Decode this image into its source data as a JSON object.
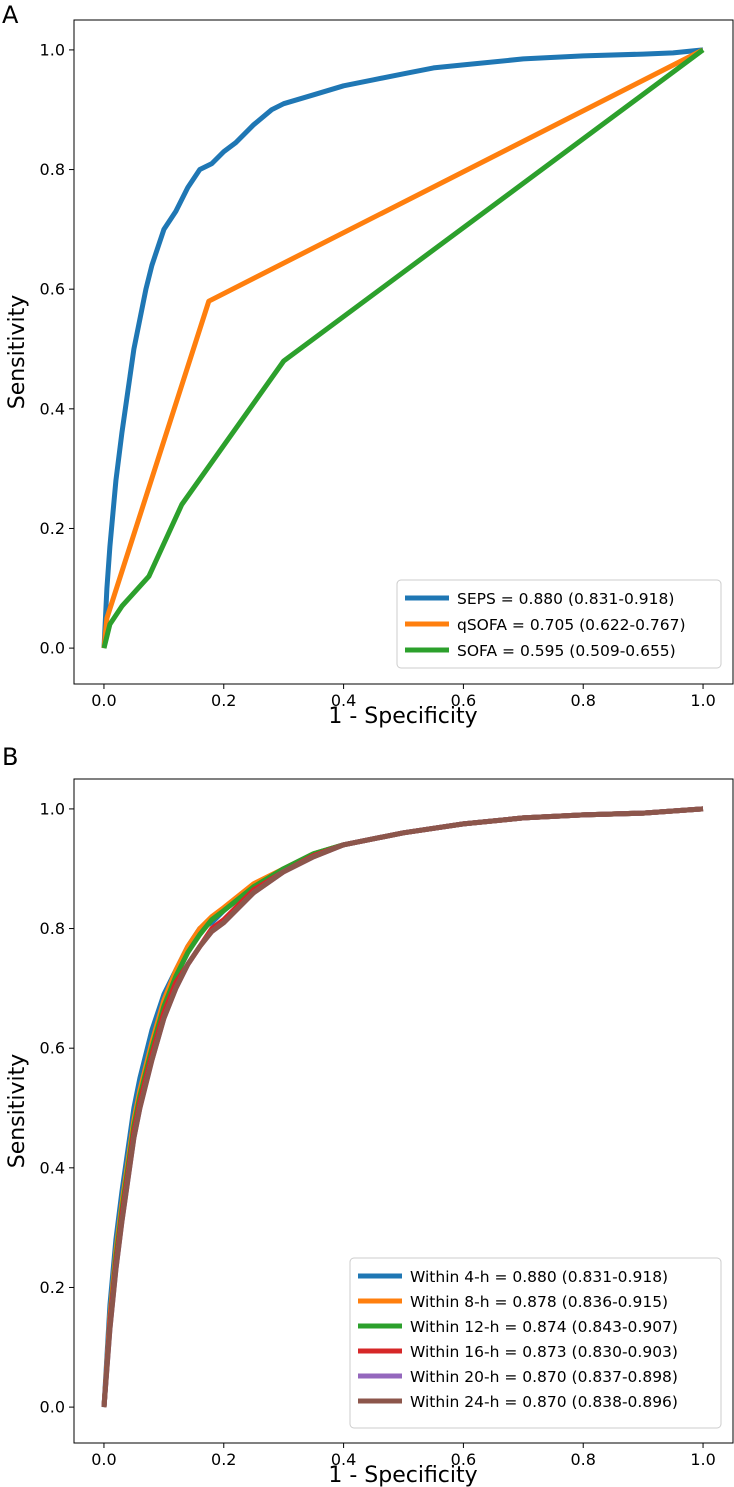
{
  "chart_data": [
    {
      "panel": "A",
      "type": "line",
      "xlabel": "1 - Specificity",
      "ylabel": "Sensitivity",
      "xlim": [
        -0.05,
        1.05
      ],
      "ylim": [
        -0.06,
        1.05
      ],
      "xticks": [
        "0.0",
        "0.2",
        "0.4",
        "0.6",
        "0.8",
        "1.0"
      ],
      "yticks": [
        "0.0",
        "0.2",
        "0.4",
        "0.6",
        "0.8",
        "1.0"
      ],
      "legend_position": "lower-right",
      "series": [
        {
          "name": "SEPS = 0.880 (0.831-0.918)",
          "color": "#1f77b4",
          "x": [
            0,
            0.005,
            0.01,
            0.02,
            0.03,
            0.04,
            0.05,
            0.06,
            0.07,
            0.08,
            0.09,
            0.1,
            0.12,
            0.14,
            0.16,
            0.18,
            0.2,
            0.22,
            0.25,
            0.28,
            0.3,
            0.35,
            0.4,
            0.45,
            0.5,
            0.55,
            0.6,
            0.7,
            0.8,
            0.9,
            0.95,
            1.0
          ],
          "y": [
            0,
            0.1,
            0.17,
            0.28,
            0.36,
            0.43,
            0.5,
            0.55,
            0.6,
            0.64,
            0.67,
            0.7,
            0.73,
            0.77,
            0.8,
            0.81,
            0.83,
            0.845,
            0.875,
            0.9,
            0.91,
            0.925,
            0.94,
            0.95,
            0.96,
            0.97,
            0.975,
            0.985,
            0.99,
            0.993,
            0.995,
            1.0
          ]
        },
        {
          "name": "qSOFA = 0.705 (0.622-0.767)",
          "color": "#ff7f0e",
          "x": [
            0,
            0.005,
            0.175,
            1.0
          ],
          "y": [
            0,
            0.05,
            0.58,
            1.0
          ]
        },
        {
          "name": "SOFA = 0.595 (0.509-0.655)",
          "color": "#2ca02c",
          "x": [
            0,
            0.01,
            0.03,
            0.075,
            0.13,
            0.3,
            1.0
          ],
          "y": [
            0,
            0.04,
            0.07,
            0.12,
            0.24,
            0.48,
            1.0
          ]
        }
      ]
    },
    {
      "panel": "B",
      "type": "line",
      "xlabel": "1 - Specificity",
      "ylabel": "Sensitivity",
      "xlim": [
        -0.05,
        1.05
      ],
      "ylim": [
        -0.06,
        1.05
      ],
      "xticks": [
        "0.0",
        "0.2",
        "0.4",
        "0.6",
        "0.8",
        "1.0"
      ],
      "yticks": [
        "0.0",
        "0.2",
        "0.4",
        "0.6",
        "0.8",
        "1.0"
      ],
      "legend_position": "lower-right",
      "series": [
        {
          "name": "Within 4-h = 0.880 (0.831-0.918)",
          "color": "#1f77b4",
          "x": [
            0,
            0.01,
            0.02,
            0.03,
            0.04,
            0.05,
            0.06,
            0.08,
            0.1,
            0.12,
            0.14,
            0.16,
            0.18,
            0.2,
            0.25,
            0.3,
            0.35,
            0.4,
            0.5,
            0.6,
            0.7,
            0.8,
            0.9,
            1.0
          ],
          "y": [
            0,
            0.17,
            0.28,
            0.36,
            0.43,
            0.5,
            0.55,
            0.63,
            0.69,
            0.73,
            0.77,
            0.8,
            0.81,
            0.83,
            0.87,
            0.9,
            0.925,
            0.94,
            0.96,
            0.975,
            0.985,
            0.99,
            0.993,
            1.0
          ]
        },
        {
          "name": "Within 8-h = 0.878 (0.836-0.915)",
          "color": "#ff7f0e",
          "x": [
            0,
            0.01,
            0.02,
            0.03,
            0.04,
            0.05,
            0.06,
            0.08,
            0.1,
            0.12,
            0.14,
            0.16,
            0.18,
            0.2,
            0.25,
            0.3,
            0.35,
            0.4,
            0.5,
            0.6,
            0.7,
            0.8,
            0.9,
            1.0
          ],
          "y": [
            0,
            0.15,
            0.26,
            0.34,
            0.41,
            0.48,
            0.53,
            0.61,
            0.68,
            0.73,
            0.77,
            0.8,
            0.82,
            0.835,
            0.875,
            0.9,
            0.925,
            0.94,
            0.96,
            0.975,
            0.985,
            0.99,
            0.993,
            1.0
          ]
        },
        {
          "name": "Within 12-h = 0.874 (0.843-0.907)",
          "color": "#2ca02c",
          "x": [
            0,
            0.01,
            0.02,
            0.03,
            0.04,
            0.05,
            0.06,
            0.08,
            0.1,
            0.12,
            0.14,
            0.16,
            0.18,
            0.2,
            0.25,
            0.3,
            0.35,
            0.4,
            0.5,
            0.6,
            0.7,
            0.8,
            0.9,
            1.0
          ],
          "y": [
            0,
            0.14,
            0.25,
            0.33,
            0.4,
            0.47,
            0.52,
            0.6,
            0.67,
            0.72,
            0.76,
            0.79,
            0.815,
            0.83,
            0.87,
            0.9,
            0.925,
            0.94,
            0.96,
            0.975,
            0.985,
            0.99,
            0.993,
            1.0
          ]
        },
        {
          "name": "Within 16-h = 0.873 (0.830-0.903)",
          "color": "#d62728",
          "x": [
            0,
            0.01,
            0.02,
            0.03,
            0.04,
            0.05,
            0.06,
            0.08,
            0.1,
            0.12,
            0.14,
            0.16,
            0.18,
            0.2,
            0.25,
            0.3,
            0.35,
            0.4,
            0.5,
            0.6,
            0.7,
            0.8,
            0.9,
            1.0
          ],
          "y": [
            0,
            0.14,
            0.24,
            0.32,
            0.39,
            0.46,
            0.51,
            0.59,
            0.66,
            0.71,
            0.74,
            0.77,
            0.8,
            0.815,
            0.865,
            0.895,
            0.922,
            0.94,
            0.96,
            0.975,
            0.985,
            0.99,
            0.993,
            1.0
          ]
        },
        {
          "name": "Within 20-h = 0.870 (0.837-0.898)",
          "color": "#9467bd",
          "x": [
            0,
            0.01,
            0.02,
            0.03,
            0.04,
            0.05,
            0.06,
            0.08,
            0.1,
            0.12,
            0.14,
            0.16,
            0.18,
            0.2,
            0.25,
            0.3,
            0.35,
            0.4,
            0.5,
            0.6,
            0.7,
            0.8,
            0.9,
            1.0
          ],
          "y": [
            0,
            0.13,
            0.23,
            0.31,
            0.38,
            0.45,
            0.5,
            0.58,
            0.65,
            0.7,
            0.74,
            0.77,
            0.795,
            0.81,
            0.86,
            0.895,
            0.92,
            0.94,
            0.96,
            0.975,
            0.985,
            0.99,
            0.993,
            1.0
          ]
        },
        {
          "name": "Within 24-h = 0.870 (0.838-0.896)",
          "color": "#8c564b",
          "x": [
            0,
            0.01,
            0.02,
            0.03,
            0.04,
            0.05,
            0.06,
            0.08,
            0.1,
            0.12,
            0.14,
            0.16,
            0.18,
            0.2,
            0.25,
            0.3,
            0.35,
            0.4,
            0.5,
            0.6,
            0.7,
            0.8,
            0.9,
            1.0
          ],
          "y": [
            0,
            0.13,
            0.23,
            0.31,
            0.38,
            0.45,
            0.5,
            0.58,
            0.65,
            0.7,
            0.74,
            0.77,
            0.795,
            0.81,
            0.86,
            0.895,
            0.92,
            0.94,
            0.96,
            0.975,
            0.985,
            0.99,
            0.993,
            1.0
          ]
        }
      ]
    }
  ]
}
